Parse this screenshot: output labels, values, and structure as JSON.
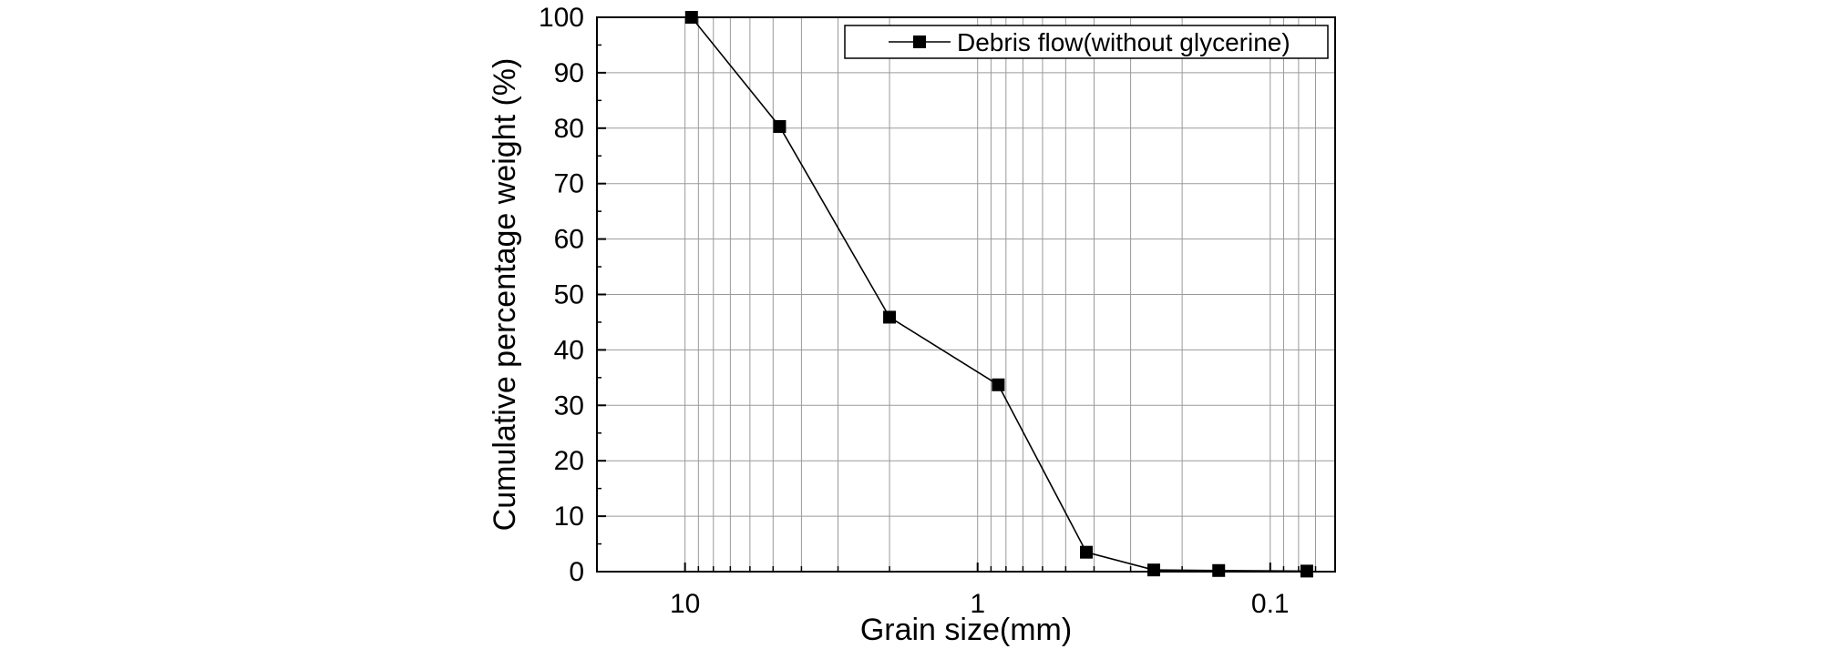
{
  "chart_data": {
    "type": "line",
    "xscale": "log",
    "xdirection": "reversed",
    "xlim": [
      20,
      0.06
    ],
    "ylim": [
      0,
      100
    ],
    "xlabel": "Grain size(mm)",
    "ylabel": "Cumulative percentage weight (%)",
    "xticks": [
      10,
      1,
      0.1
    ],
    "xtick_labels": [
      "10",
      "1",
      "0.1"
    ],
    "yticks": [
      0,
      10,
      20,
      30,
      40,
      50,
      60,
      70,
      80,
      90,
      100
    ],
    "grid": true,
    "legend_position": "top-right",
    "series": [
      {
        "name": "Debris flow(without glycerine)",
        "marker": "square",
        "color": "#000000",
        "x": [
          9.5,
          4.75,
          2,
          0.85,
          0.425,
          0.25,
          0.15,
          0.075
        ],
        "y": [
          100,
          80.3,
          45.9,
          33.7,
          3.5,
          0.3,
          0.2,
          0.1
        ]
      }
    ]
  }
}
